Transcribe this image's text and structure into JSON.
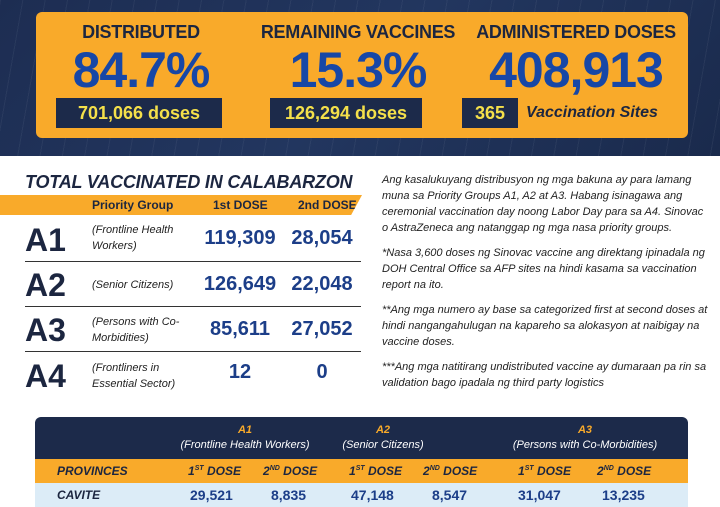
{
  "stats": {
    "distributed": {
      "label": "DISTRIBUTED",
      "value": "84.7%",
      "doses": "701,066 doses"
    },
    "remaining": {
      "label": "REMAINING VACCINES",
      "value": "15.3%",
      "doses": "126,294 doses"
    },
    "administered": {
      "label": "ADMINISTERED DOSES",
      "value": "408,913",
      "sites_count": "365",
      "sites_label": "Vaccination Sites"
    }
  },
  "total": {
    "title": "TOTAL VACCINATED IN CALABARZON",
    "headers": [
      "Priority Group",
      "1st DOSE",
      "2nd DOSE"
    ],
    "rows": [
      {
        "code": "A1",
        "desc": "(Frontline Health Workers)",
        "first": "119,309",
        "second": "28,054"
      },
      {
        "code": "A2",
        "desc": "(Senior Citizens)",
        "first": "126,649",
        "second": "22,048"
      },
      {
        "code": "A3",
        "desc": "(Persons with Co-Morbidities)",
        "first": "85,611",
        "second": "27,052"
      },
      {
        "code": "A4",
        "desc": "(Frontliners in Essential Sector)",
        "first": "12",
        "second": "0"
      }
    ]
  },
  "notes": [
    "Ang kasalukuyang distribusyon ng mga bakuna ay para lamang muna sa Priority Groups A1, A2 at A3. Habang isinagawa ang ceremonial vaccination day noong Labor Day para sa A4. Sinovac o AstraZeneca ang natanggap ng mga nasa priority groups.",
    "*Nasa 3,600 doses ng Sinovac vaccine ang direktang ipinadala ng DOH Central Office sa AFP sites na hindi kasama sa vaccination report na ito.",
    "**Ang mga numero ay base sa categorized first at second doses at hindi nangangahulugan na kapareho sa alokasyon at naibigay na vaccine doses.",
    "***Ang mga natitirang undistributed vaccine ay dumaraan pa rin sa validation bago ipadala ng third party logistics"
  ],
  "provinces": {
    "groups": [
      {
        "code": "A1",
        "desc": "(Frontline Health Workers)"
      },
      {
        "code": "A2",
        "desc": "(Senior Citizens)"
      },
      {
        "code": "A3",
        "desc": "(Persons with Co-Morbidities)"
      }
    ],
    "provinces_label": "PROVINCES",
    "dose1": "1",
    "dose1_sup": "ST",
    "dose2": "2",
    "dose2_sup": "ND",
    "dose_word": " DOSE",
    "rows": [
      {
        "name": "CAVITE",
        "values": [
          "29,521",
          "8,835",
          "47,148",
          "8,547",
          "31,047",
          "13,235"
        ]
      }
    ]
  }
}
